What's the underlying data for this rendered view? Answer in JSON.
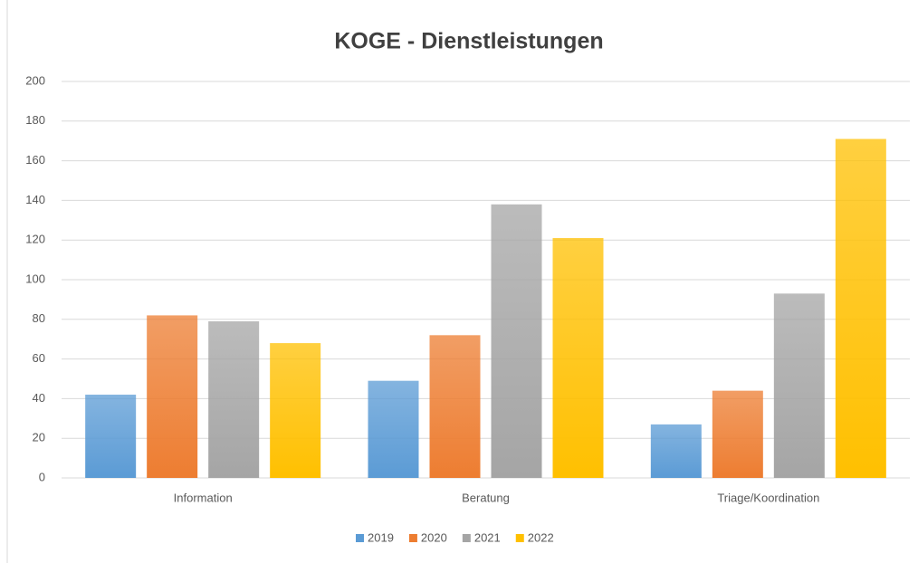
{
  "chart_data": {
    "type": "bar",
    "title": "KOGE - Dienstleistungen",
    "categories": [
      "Information",
      "Beratung",
      "Triage/Koordination"
    ],
    "series": [
      {
        "name": "2019",
        "color": "#5b9bd5",
        "values": [
          42,
          49,
          27
        ]
      },
      {
        "name": "2020",
        "color": "#ed7d31",
        "values": [
          82,
          72,
          44
        ]
      },
      {
        "name": "2021",
        "color": "#a5a5a5",
        "values": [
          79,
          138,
          93
        ]
      },
      {
        "name": "2022",
        "color": "#ffc000",
        "values": [
          68,
          121,
          171
        ]
      }
    ],
    "ylim": [
      0,
      200
    ],
    "yticks": [
      0,
      20,
      40,
      60,
      80,
      100,
      120,
      140,
      160,
      180,
      200
    ],
    "grid": true,
    "legend": "bottom"
  }
}
